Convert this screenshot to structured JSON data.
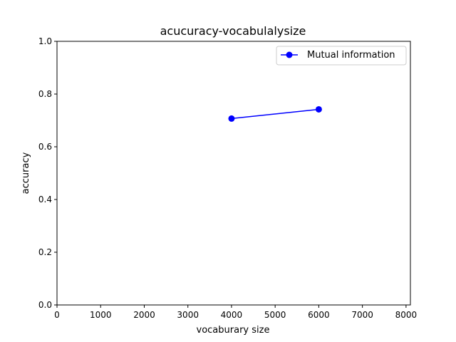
{
  "chart_data": {
    "type": "line",
    "title": "acucuracy-vocabulalysize",
    "xlabel": "vocaburary size",
    "ylabel": "accuracy",
    "xlim": [
      0,
      8100
    ],
    "ylim": [
      0,
      1.0
    ],
    "x_ticks": [
      0,
      1000,
      2000,
      3000,
      4000,
      5000,
      6000,
      7000,
      8000
    ],
    "y_ticks": [
      0.0,
      0.2,
      0.4,
      0.6,
      0.8,
      1.0
    ],
    "x_tick_labels": [
      "0",
      "1000",
      "2000",
      "3000",
      "4000",
      "5000",
      "6000",
      "7000",
      "8000"
    ],
    "y_tick_labels": [
      "0.0",
      "0.2",
      "0.4",
      "0.6",
      "0.8",
      "1.0"
    ],
    "grid": false,
    "legend_position": "top-right",
    "series": [
      {
        "name": "Mutual information",
        "color": "#0000ff",
        "marker": "circle",
        "x": [
          4000,
          6000
        ],
        "y": [
          0.707,
          0.742
        ]
      }
    ]
  }
}
